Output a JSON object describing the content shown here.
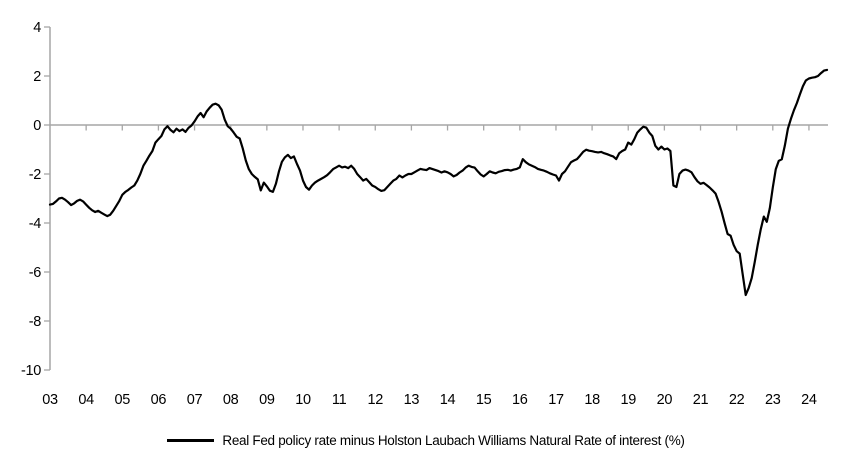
{
  "legend": {
    "label": "Real Fed policy rate minus Holston Laubach Williams Natural Rate of interest (%)"
  },
  "chart_data": {
    "type": "line",
    "title": "",
    "xlabel": "",
    "ylabel": "",
    "ylim": [
      -10,
      4
    ],
    "y_ticks": [
      4,
      2,
      0,
      -2,
      -4,
      -6,
      -8,
      -10
    ],
    "x_tick_labels": [
      "03",
      "04",
      "05",
      "06",
      "07",
      "08",
      "09",
      "10",
      "11",
      "12",
      "13",
      "14",
      "15",
      "16",
      "17",
      "18",
      "19",
      "20",
      "21",
      "22",
      "23",
      "24"
    ],
    "x_range_years": [
      2003.0,
      2024.58
    ],
    "grid": "zero-line-only",
    "legend_position": "bottom-center",
    "line_color": "#000000",
    "axis_color": "#a6a6a6",
    "background": "#ffffff",
    "series": [
      {
        "name": "Real Fed policy rate minus Holston Laubach Williams Natural Rate of interest (%)",
        "start_year": 2003,
        "frequency": "monthly",
        "values": [
          -3.25,
          -3.22,
          -3.12,
          -3.0,
          -2.97,
          -3.05,
          -3.15,
          -3.27,
          -3.2,
          -3.1,
          -3.05,
          -3.12,
          -3.25,
          -3.38,
          -3.48,
          -3.55,
          -3.5,
          -3.58,
          -3.65,
          -3.72,
          -3.66,
          -3.5,
          -3.3,
          -3.1,
          -2.85,
          -2.73,
          -2.65,
          -2.55,
          -2.47,
          -2.27,
          -2.0,
          -1.66,
          -1.46,
          -1.25,
          -1.06,
          -0.72,
          -0.58,
          -0.45,
          -0.18,
          -0.05,
          -0.2,
          -0.3,
          -0.15,
          -0.25,
          -0.18,
          -0.28,
          -0.12,
          -0.02,
          0.15,
          0.35,
          0.49,
          0.32,
          0.55,
          0.7,
          0.83,
          0.87,
          0.8,
          0.62,
          0.22,
          -0.05,
          -0.15,
          -0.31,
          -0.48,
          -0.55,
          -0.95,
          -1.45,
          -1.8,
          -2.0,
          -2.12,
          -2.22,
          -2.67,
          -2.35,
          -2.5,
          -2.68,
          -2.73,
          -2.4,
          -1.9,
          -1.5,
          -1.32,
          -1.22,
          -1.35,
          -1.28,
          -1.59,
          -1.86,
          -2.27,
          -2.53,
          -2.64,
          -2.47,
          -2.35,
          -2.27,
          -2.2,
          -2.13,
          -2.05,
          -1.93,
          -1.8,
          -1.73,
          -1.66,
          -1.73,
          -1.7,
          -1.76,
          -1.66,
          -1.79,
          -2.0,
          -2.13,
          -2.27,
          -2.2,
          -2.33,
          -2.47,
          -2.53,
          -2.62,
          -2.69,
          -2.66,
          -2.53,
          -2.4,
          -2.27,
          -2.2,
          -2.06,
          -2.14,
          -2.06,
          -2.0,
          -2.0,
          -1.93,
          -1.86,
          -1.79,
          -1.82,
          -1.84,
          -1.76,
          -1.8,
          -1.84,
          -1.88,
          -1.94,
          -1.89,
          -1.93,
          -2.0,
          -2.1,
          -2.04,
          -1.94,
          -1.86,
          -1.74,
          -1.66,
          -1.71,
          -1.74,
          -1.89,
          -2.02,
          -2.1,
          -2.0,
          -1.89,
          -1.94,
          -1.97,
          -1.91,
          -1.88,
          -1.84,
          -1.83,
          -1.86,
          -1.82,
          -1.79,
          -1.73,
          -1.39,
          -1.52,
          -1.61,
          -1.66,
          -1.72,
          -1.79,
          -1.83,
          -1.86,
          -1.91,
          -1.97,
          -2.02,
          -2.06,
          -2.27,
          -2.0,
          -1.89,
          -1.7,
          -1.52,
          -1.45,
          -1.39,
          -1.25,
          -1.1,
          -1.01,
          -1.05,
          -1.07,
          -1.1,
          -1.12,
          -1.1,
          -1.15,
          -1.19,
          -1.24,
          -1.28,
          -1.39,
          -1.15,
          -1.06,
          -1.0,
          -0.72,
          -0.8,
          -0.58,
          -0.31,
          -0.18,
          -0.07,
          -0.11,
          -0.31,
          -0.45,
          -0.85,
          -1.0,
          -0.88,
          -1.0,
          -0.96,
          -1.06,
          -2.47,
          -2.53,
          -2.0,
          -1.86,
          -1.82,
          -1.86,
          -1.93,
          -2.13,
          -2.3,
          -2.4,
          -2.36,
          -2.45,
          -2.55,
          -2.67,
          -2.8,
          -3.14,
          -3.54,
          -4.01,
          -4.45,
          -4.52,
          -4.89,
          -5.15,
          -5.25,
          -6.1,
          -6.94,
          -6.65,
          -6.25,
          -5.6,
          -4.9,
          -4.25,
          -3.74,
          -3.95,
          -3.4,
          -2.55,
          -1.8,
          -1.46,
          -1.4,
          -0.85,
          -0.15,
          0.25,
          0.6,
          0.9,
          1.25,
          1.58,
          1.82,
          1.9,
          1.93,
          1.95,
          2.0,
          2.12,
          2.22,
          2.25
        ]
      }
    ]
  }
}
